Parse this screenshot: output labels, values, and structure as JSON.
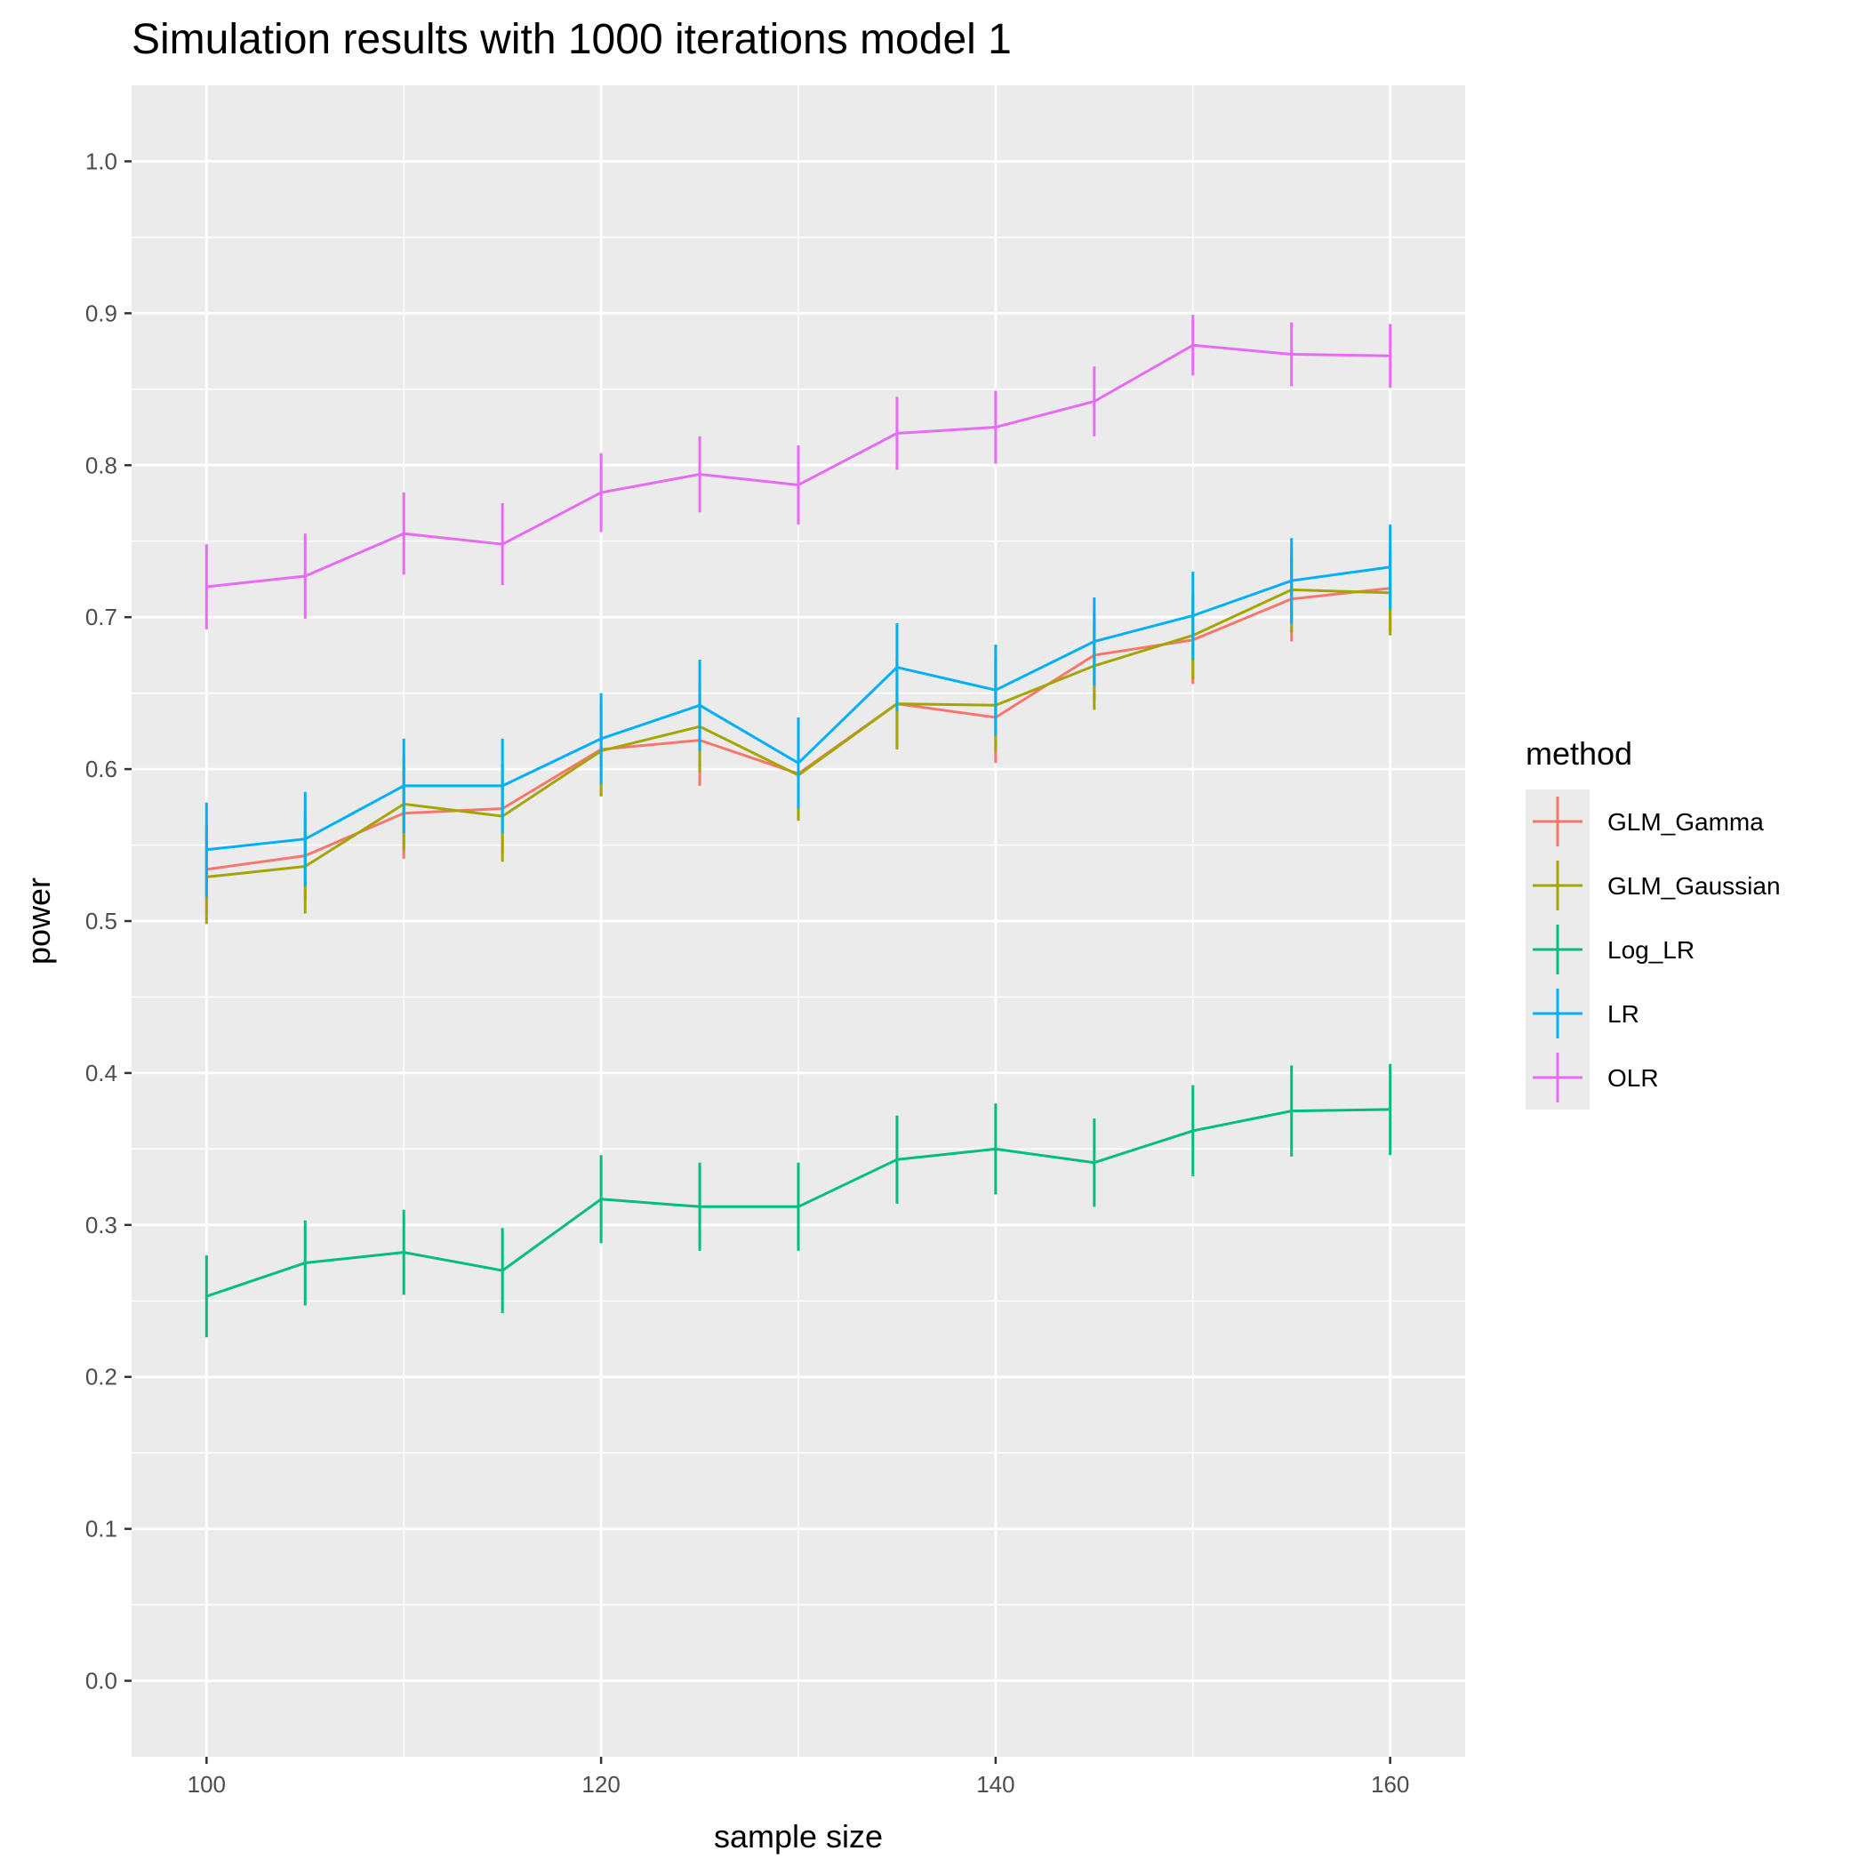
{
  "chart_data": {
    "type": "line",
    "title": "Simulation results with 1000 iterations model 1",
    "xlabel": "sample size",
    "ylabel": "power",
    "xlim": [
      96.2,
      163.8
    ],
    "ylim": [
      -0.05,
      1.05
    ],
    "x_ticks": [
      100,
      120,
      140,
      160
    ],
    "y_ticks": [
      0.0,
      0.1,
      0.2,
      0.3,
      0.4,
      0.5,
      0.6,
      0.7,
      0.8,
      0.9,
      1.0
    ],
    "x_tick_labels": [
      "100",
      "120",
      "140",
      "160"
    ],
    "y_tick_labels": [
      "0.0",
      "0.1",
      "0.2",
      "0.3",
      "0.4",
      "0.5",
      "0.6",
      "0.7",
      "0.8",
      "0.9",
      "1.0"
    ],
    "grid": true,
    "error_bars": true,
    "legend": {
      "title": "method",
      "position": "right"
    },
    "x": [
      100,
      105,
      110,
      115,
      120,
      125,
      130,
      135,
      140,
      145,
      150,
      155,
      160
    ],
    "series": [
      {
        "name": "GLM_Gamma",
        "color": "#F8766D",
        "values": [
          0.534,
          0.543,
          0.571,
          0.574,
          0.613,
          0.619,
          0.597,
          0.643,
          0.634,
          0.675,
          0.685,
          0.712,
          0.719
        ],
        "lower": [
          0.505,
          0.514,
          0.541,
          0.545,
          0.583,
          0.589,
          0.567,
          0.613,
          0.604,
          0.646,
          0.656,
          0.684,
          0.691
        ],
        "upper": [
          0.563,
          0.572,
          0.601,
          0.603,
          0.643,
          0.649,
          0.627,
          0.673,
          0.664,
          0.704,
          0.714,
          0.74,
          0.747
        ]
      },
      {
        "name": "GLM_Gaussian",
        "color": "#A3A500",
        "values": [
          0.529,
          0.536,
          0.577,
          0.569,
          0.612,
          0.628,
          0.596,
          0.643,
          0.642,
          0.668,
          0.688,
          0.718,
          0.716
        ],
        "lower": [
          0.498,
          0.505,
          0.546,
          0.539,
          0.582,
          0.598,
          0.566,
          0.613,
          0.612,
          0.639,
          0.659,
          0.69,
          0.688
        ],
        "upper": [
          0.56,
          0.567,
          0.608,
          0.599,
          0.642,
          0.658,
          0.626,
          0.673,
          0.672,
          0.697,
          0.717,
          0.746,
          0.744
        ]
      },
      {
        "name": "Log_LR",
        "color": "#00BF7D",
        "values": [
          0.253,
          0.275,
          0.282,
          0.27,
          0.317,
          0.312,
          0.312,
          0.343,
          0.35,
          0.341,
          0.362,
          0.375,
          0.376
        ],
        "lower": [
          0.226,
          0.247,
          0.254,
          0.242,
          0.288,
          0.283,
          0.283,
          0.314,
          0.32,
          0.312,
          0.332,
          0.345,
          0.346
        ],
        "upper": [
          0.28,
          0.303,
          0.31,
          0.298,
          0.346,
          0.341,
          0.341,
          0.372,
          0.38,
          0.37,
          0.392,
          0.405,
          0.406
        ]
      },
      {
        "name": "LR",
        "color": "#00B0F6",
        "values": [
          0.547,
          0.554,
          0.589,
          0.589,
          0.62,
          0.642,
          0.604,
          0.667,
          0.652,
          0.684,
          0.701,
          0.724,
          0.733
        ],
        "lower": [
          0.516,
          0.523,
          0.558,
          0.558,
          0.59,
          0.612,
          0.574,
          0.638,
          0.622,
          0.655,
          0.672,
          0.696,
          0.705
        ],
        "upper": [
          0.578,
          0.585,
          0.62,
          0.62,
          0.65,
          0.672,
          0.634,
          0.696,
          0.682,
          0.713,
          0.73,
          0.752,
          0.761
        ]
      },
      {
        "name": "OLR",
        "color": "#E76BF3",
        "values": [
          0.72,
          0.727,
          0.755,
          0.748,
          0.782,
          0.794,
          0.787,
          0.821,
          0.825,
          0.842,
          0.879,
          0.873,
          0.872
        ],
        "lower": [
          0.692,
          0.699,
          0.728,
          0.721,
          0.756,
          0.769,
          0.761,
          0.797,
          0.801,
          0.819,
          0.859,
          0.852,
          0.851
        ],
        "upper": [
          0.748,
          0.755,
          0.782,
          0.775,
          0.808,
          0.819,
          0.813,
          0.845,
          0.849,
          0.865,
          0.899,
          0.894,
          0.893
        ]
      }
    ]
  }
}
